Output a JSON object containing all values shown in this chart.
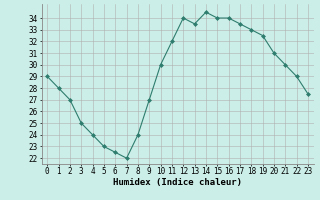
{
  "x": [
    0,
    1,
    2,
    3,
    4,
    5,
    6,
    7,
    8,
    9,
    10,
    11,
    12,
    13,
    14,
    15,
    16,
    17,
    18,
    19,
    20,
    21,
    22,
    23
  ],
  "y": [
    29,
    28,
    27,
    25,
    24,
    23,
    22.5,
    22,
    24,
    27,
    30,
    32,
    34,
    33.5,
    34.5,
    34,
    34,
    33.5,
    33,
    32.5,
    31,
    30,
    29,
    27.5
  ],
  "line_color": "#2e7d6e",
  "marker": "D",
  "marker_size": 2,
  "bg_color": "#cceee8",
  "grid_color": "#b0b0b0",
  "xlabel": "Humidex (Indice chaleur)",
  "ylim": [
    21.5,
    35.2
  ],
  "xlim": [
    -0.5,
    23.5
  ],
  "yticks": [
    22,
    23,
    24,
    25,
    26,
    27,
    28,
    29,
    30,
    31,
    32,
    33,
    34
  ],
  "xticks": [
    0,
    1,
    2,
    3,
    4,
    5,
    6,
    7,
    8,
    9,
    10,
    11,
    12,
    13,
    14,
    15,
    16,
    17,
    18,
    19,
    20,
    21,
    22,
    23
  ],
  "tick_fontsize": 5.5,
  "xlabel_fontsize": 6.5
}
